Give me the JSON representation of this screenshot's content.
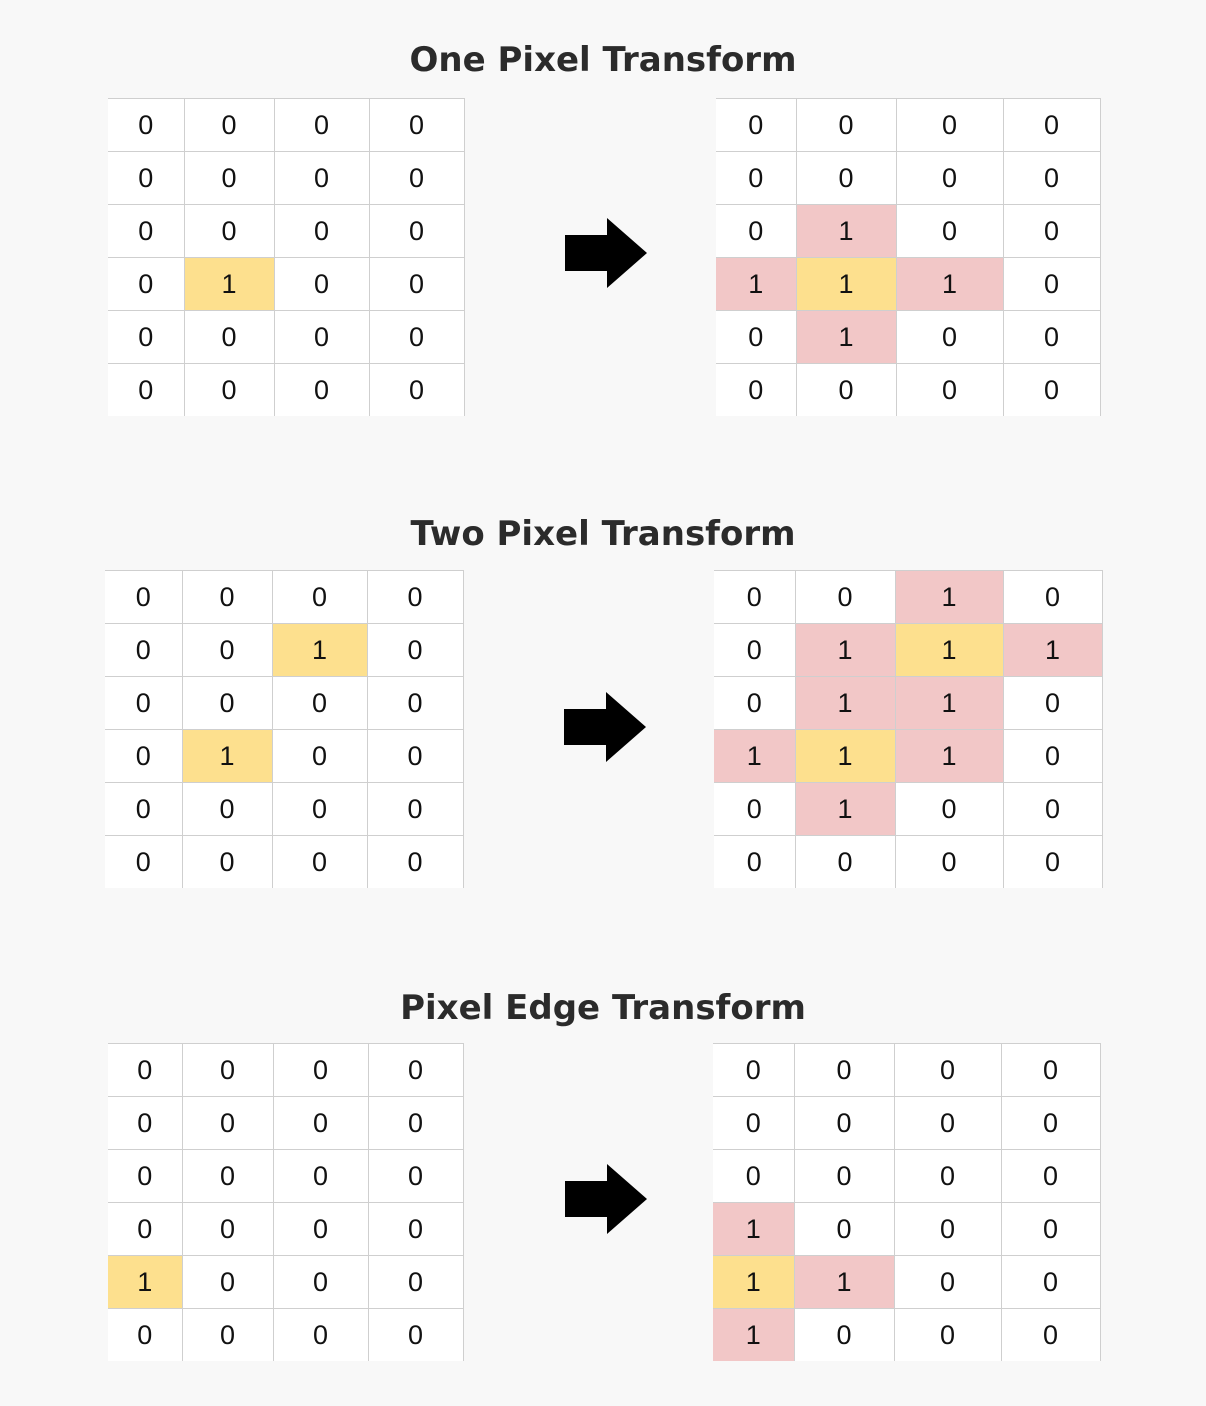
{
  "colors": {
    "background": "#f8f8f8",
    "original_pixel": "#fde08e",
    "added_pixel": "#f2c7c7",
    "gridline": "#cfcfcf"
  },
  "icons": {
    "arrow": "right-arrow-icon"
  },
  "sections": [
    {
      "title": "One Pixel Transform",
      "input": {
        "values": [
          [
            0,
            0,
            0,
            0
          ],
          [
            0,
            0,
            0,
            0
          ],
          [
            0,
            0,
            0,
            0
          ],
          [
            0,
            1,
            0,
            0
          ],
          [
            0,
            0,
            0,
            0
          ],
          [
            0,
            0,
            0,
            0
          ]
        ],
        "highlight": [
          [
            "",
            "",
            "",
            ""
          ],
          [
            "",
            "",
            "",
            ""
          ],
          [
            "",
            "",
            "",
            ""
          ],
          [
            "",
            "o",
            "",
            ""
          ],
          [
            "",
            "",
            "",
            ""
          ],
          [
            "",
            "",
            "",
            ""
          ]
        ]
      },
      "output": {
        "values": [
          [
            0,
            0,
            0,
            0
          ],
          [
            0,
            0,
            0,
            0
          ],
          [
            0,
            1,
            0,
            0
          ],
          [
            1,
            1,
            1,
            0
          ],
          [
            0,
            1,
            0,
            0
          ],
          [
            0,
            0,
            0,
            0
          ]
        ],
        "highlight": [
          [
            "",
            "",
            "",
            ""
          ],
          [
            "",
            "",
            "",
            ""
          ],
          [
            "",
            "n",
            "",
            ""
          ],
          [
            "n",
            "o",
            "n",
            ""
          ],
          [
            "",
            "n",
            "",
            ""
          ],
          [
            "",
            "",
            "",
            ""
          ]
        ]
      }
    },
    {
      "title": "Two Pixel Transform",
      "input": {
        "values": [
          [
            0,
            0,
            0,
            0
          ],
          [
            0,
            0,
            1,
            0
          ],
          [
            0,
            0,
            0,
            0
          ],
          [
            0,
            1,
            0,
            0
          ],
          [
            0,
            0,
            0,
            0
          ],
          [
            0,
            0,
            0,
            0
          ]
        ],
        "highlight": [
          [
            "",
            "",
            "",
            ""
          ],
          [
            "",
            "",
            "o",
            ""
          ],
          [
            "",
            "",
            "",
            ""
          ],
          [
            "",
            "o",
            "",
            ""
          ],
          [
            "",
            "",
            "",
            ""
          ],
          [
            "",
            "",
            "",
            ""
          ]
        ]
      },
      "output": {
        "values": [
          [
            0,
            0,
            1,
            0
          ],
          [
            0,
            1,
            1,
            1
          ],
          [
            0,
            1,
            1,
            0
          ],
          [
            1,
            1,
            1,
            0
          ],
          [
            0,
            1,
            0,
            0
          ],
          [
            0,
            0,
            0,
            0
          ]
        ],
        "highlight": [
          [
            "",
            "",
            "n",
            ""
          ],
          [
            "",
            "n",
            "o",
            "n"
          ],
          [
            "",
            "n",
            "n",
            ""
          ],
          [
            "n",
            "o",
            "n",
            ""
          ],
          [
            "",
            "n",
            "",
            ""
          ],
          [
            "",
            "",
            "",
            ""
          ]
        ]
      }
    },
    {
      "title": "Pixel Edge Transform",
      "input": {
        "values": [
          [
            0,
            0,
            0,
            0
          ],
          [
            0,
            0,
            0,
            0
          ],
          [
            0,
            0,
            0,
            0
          ],
          [
            0,
            0,
            0,
            0
          ],
          [
            1,
            0,
            0,
            0
          ],
          [
            0,
            0,
            0,
            0
          ]
        ],
        "highlight": [
          [
            "",
            "",
            "",
            ""
          ],
          [
            "",
            "",
            "",
            ""
          ],
          [
            "",
            "",
            "",
            ""
          ],
          [
            "",
            "",
            "",
            ""
          ],
          [
            "o",
            "",
            "",
            ""
          ],
          [
            "",
            "",
            "",
            ""
          ]
        ]
      },
      "output": {
        "values": [
          [
            0,
            0,
            0,
            0
          ],
          [
            0,
            0,
            0,
            0
          ],
          [
            0,
            0,
            0,
            0
          ],
          [
            1,
            0,
            0,
            0
          ],
          [
            1,
            1,
            0,
            0
          ],
          [
            1,
            0,
            0,
            0
          ]
        ],
        "highlight": [
          [
            "",
            "",
            "",
            ""
          ],
          [
            "",
            "",
            "",
            ""
          ],
          [
            "",
            "",
            "",
            ""
          ],
          [
            "n",
            "",
            "",
            ""
          ],
          [
            "o",
            "n",
            "",
            ""
          ],
          [
            "n",
            "",
            "",
            ""
          ]
        ]
      }
    }
  ]
}
